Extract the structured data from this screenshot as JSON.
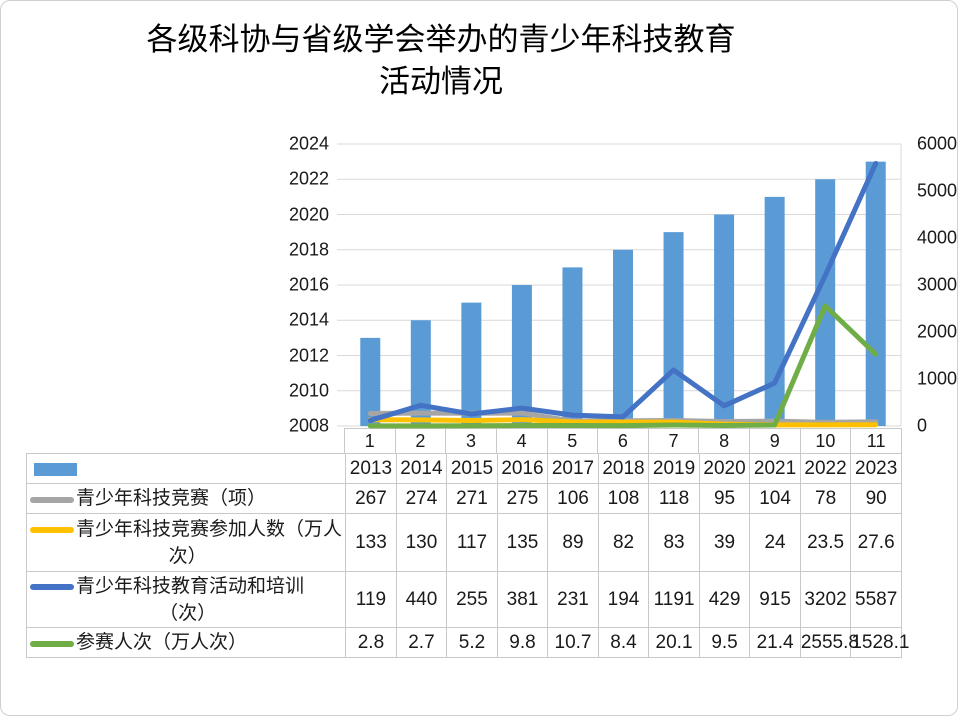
{
  "title": {
    "line1": "各级科协与省级学会举办的青少年科技教育",
    "line2": "活动情况"
  },
  "colors": {
    "bar_blue": "#5B9BD5",
    "line_gray": "#A5A5A5",
    "line_yellow": "#FFC000",
    "line_blue": "#4472C4",
    "line_green": "#70AD47",
    "gridline": "#D9D9D9",
    "table_border": "#C9C9C9",
    "text": "#1A1A1A"
  },
  "chart_data": {
    "type": "combo (bar + line, dual axis, data table legend)",
    "grid": true,
    "legend_position": "data-table",
    "categories": [
      "1",
      "2",
      "3",
      "4",
      "5",
      "6",
      "7",
      "8",
      "9",
      "10",
      "11"
    ],
    "left_axis": {
      "min": 2008,
      "max": 2024,
      "step": 2,
      "ticks": [
        "2024",
        "2022",
        "2020",
        "2018",
        "2016",
        "2014",
        "2012",
        "2010",
        "2008"
      ]
    },
    "right_axis": {
      "min": 0,
      "max": 6000,
      "step": 1000,
      "ticks": [
        "6000",
        "5000",
        "4000",
        "3000",
        "2000",
        "1000",
        "0"
      ]
    },
    "series": [
      {
        "kind": "bar",
        "name": "",
        "label_lines": [],
        "axis": "left",
        "color_key": "bar_blue",
        "values": [
          2013,
          2014,
          2015,
          2016,
          2017,
          2018,
          2019,
          2020,
          2021,
          2022,
          2023
        ]
      },
      {
        "kind": "line",
        "name": "青少年科技竞赛（项）",
        "label_lines": [
          "青少年科技竞赛（项）"
        ],
        "axis": "right",
        "color_key": "line_gray",
        "values": [
          267,
          274,
          271,
          275,
          106,
          108,
          118,
          95,
          104,
          78,
          90
        ]
      },
      {
        "kind": "line",
        "name": "青少年科技竞赛参加人数（万人次）",
        "label_lines": [
          "青少年科技竞赛参加人数（万人",
          "次）"
        ],
        "axis": "right",
        "color_key": "line_yellow",
        "values": [
          133,
          130,
          117,
          135,
          89,
          82,
          83,
          39,
          24,
          23.5,
          27.6
        ]
      },
      {
        "kind": "line",
        "name": "青少年科技教育活动和培训（次）",
        "label_lines": [
          "青少年科技教育活动和培训",
          "（次）"
        ],
        "axis": "right",
        "color_key": "line_blue",
        "values": [
          119,
          440,
          255,
          381,
          231,
          194,
          1191,
          429,
          915,
          3202,
          5587
        ]
      },
      {
        "kind": "line",
        "name": "参赛人次（万人次）",
        "label_lines": [
          "参赛人次（万人次）"
        ],
        "axis": "right",
        "color_key": "line_green",
        "values": [
          2.8,
          2.7,
          5.2,
          9.8,
          10.7,
          8.4,
          20.1,
          9.5,
          21.4,
          2555.8,
          1528.1
        ]
      }
    ]
  }
}
